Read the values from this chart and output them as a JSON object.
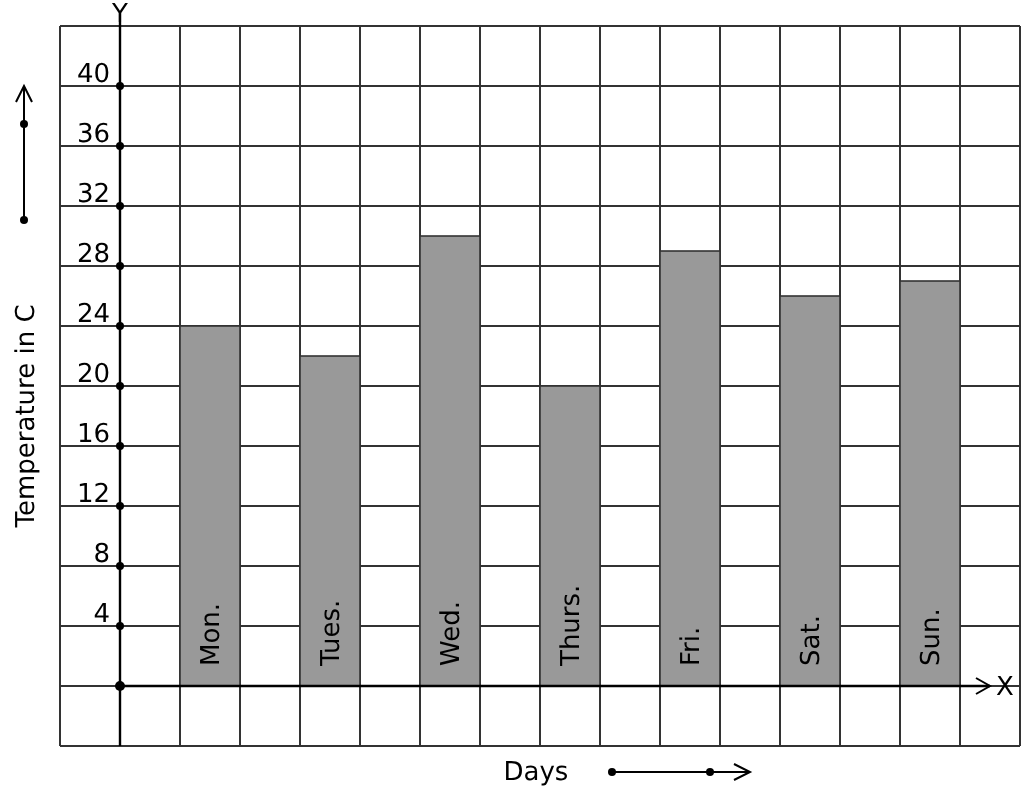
{
  "chart_data": {
    "type": "bar",
    "xlabel": "Days",
    "ylabel": "Temperature in C",
    "categories": [
      "Mon.",
      "Tues.",
      "Wed.",
      "Thurs.",
      "Fri.",
      "Sat.",
      "Sun."
    ],
    "values": [
      24,
      22,
      30,
      20,
      29,
      26,
      27
    ],
    "color": "#999999",
    "ylim": [
      -4,
      44
    ],
    "yticks": [
      4,
      8,
      12,
      16,
      20,
      24,
      28,
      32,
      36,
      40
    ],
    "grid": true,
    "annotations": [
      "X",
      "Y"
    ]
  }
}
